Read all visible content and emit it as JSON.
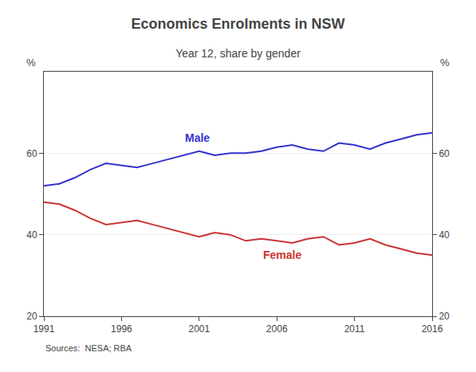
{
  "chart_data": {
    "type": "line",
    "title": "Economics Enrolments in NSW",
    "subtitle": "Year 12, share by gender",
    "source": "Sources:  NESA; RBA",
    "ylabel": "%",
    "y2label": "%",
    "x": [
      1991,
      1992,
      1993,
      1994,
      1995,
      1996,
      1997,
      1998,
      1999,
      2000,
      2001,
      2002,
      2003,
      2004,
      2005,
      2006,
      2007,
      2008,
      2009,
      2010,
      2011,
      2012,
      2013,
      2014,
      2015,
      2016
    ],
    "series": [
      {
        "name": "Male",
        "color": "#3333cc",
        "values": [
          52.0,
          52.5,
          54.0,
          56.0,
          57.5,
          57.0,
          56.5,
          57.5,
          58.5,
          59.5,
          60.5,
          59.5,
          60.0,
          60.0,
          60.5,
          61.5,
          62.0,
          61.0,
          60.5,
          62.5,
          62.0,
          61.0,
          62.5,
          63.5,
          64.5,
          65.0
        ]
      },
      {
        "name": "Female",
        "color": "#cc3333",
        "values": [
          48.0,
          47.5,
          46.0,
          44.0,
          42.5,
          43.0,
          43.5,
          42.5,
          41.5,
          40.5,
          39.5,
          40.5,
          40.0,
          38.5,
          39.0,
          38.5,
          38.0,
          39.0,
          39.5,
          37.5,
          38.0,
          39.0,
          37.5,
          36.5,
          35.5,
          35.0
        ]
      }
    ],
    "xlim": [
      1991,
      2016
    ],
    "xticks": [
      1991,
      1996,
      2001,
      2006,
      2011,
      2016
    ],
    "ylim": [
      20,
      80
    ],
    "yticks": [
      20,
      40,
      60
    ],
    "y2lim": [
      20,
      80
    ],
    "y2ticks": [
      20,
      40,
      60
    ],
    "grid": true
  }
}
